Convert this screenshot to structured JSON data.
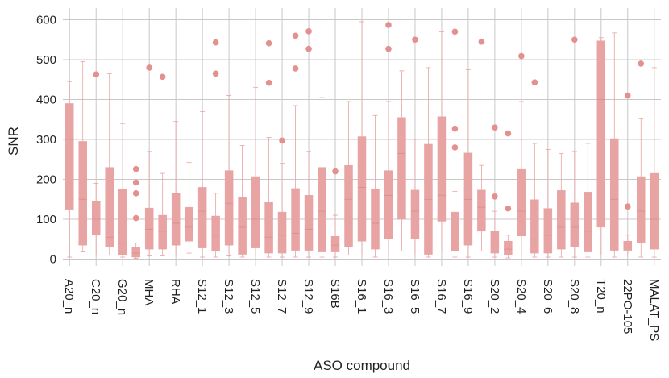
{
  "chart_data": {
    "type": "box",
    "title": "",
    "xlabel": "ASO compound",
    "ylabel": "SNR",
    "ylim": [
      -20,
      640
    ],
    "yticks": [
      0,
      100,
      200,
      300,
      400,
      500,
      600
    ],
    "grid": true,
    "legend": "none",
    "box_color": "#e8a3a3",
    "grid_color": "#c8c8c8",
    "x_tick_labels": [
      "A20_n",
      "C20_n",
      "G20_n",
      "MHA",
      "RHA",
      "S12_1",
      "S12_3",
      "S12_5",
      "S12_7",
      "S12_9",
      "S16B",
      "S16_1",
      "S16_3",
      "S16_5",
      "S16_7",
      "S16_9",
      "S20_2",
      "S20_4",
      "S20_6",
      "S20_8",
      "T20_n",
      "22PO-105",
      "MALAT_PS"
    ],
    "boxes": [
      {
        "q1": 125,
        "median": 300,
        "q3": 390,
        "whisker_low": 5,
        "whisker_high": 445,
        "outliers": []
      },
      {
        "q1": 35,
        "median": 150,
        "q3": 295,
        "whisker_low": 18,
        "whisker_high": 495,
        "outliers": []
      },
      {
        "q1": 60,
        "median": 100,
        "q3": 145,
        "whisker_low": 10,
        "whisker_high": 190,
        "outliers": [
          463
        ]
      },
      {
        "q1": 30,
        "median": 55,
        "q3": 230,
        "whisker_low": 10,
        "whisker_high": 465,
        "outliers": []
      },
      {
        "q1": 10,
        "median": 40,
        "q3": 175,
        "whisker_low": 5,
        "whisker_high": 340,
        "outliers": []
      },
      {
        "q1": 5,
        "median": 15,
        "q3": 30,
        "whisker_low": 2,
        "whisker_high": 40,
        "outliers": [
          103,
          165,
          192,
          226
        ]
      },
      {
        "q1": 25,
        "median": 75,
        "q3": 128,
        "whisker_low": 8,
        "whisker_high": 270,
        "outliers": [
          480
        ]
      },
      {
        "q1": 25,
        "median": 70,
        "q3": 110,
        "whisker_low": 8,
        "whisker_high": 215,
        "outliers": [
          457
        ]
      },
      {
        "q1": 35,
        "median": 90,
        "q3": 165,
        "whisker_low": 10,
        "whisker_high": 345,
        "outliers": []
      },
      {
        "q1": 45,
        "median": 80,
        "q3": 130,
        "whisker_low": 15,
        "whisker_high": 242,
        "outliers": []
      },
      {
        "q1": 28,
        "median": 120,
        "q3": 180,
        "whisker_low": 5,
        "whisker_high": 370,
        "outliers": []
      },
      {
        "q1": 20,
        "median": 60,
        "q3": 108,
        "whisker_low": 5,
        "whisker_high": 165,
        "outliers": [
          465,
          543
        ]
      },
      {
        "q1": 35,
        "median": 140,
        "q3": 222,
        "whisker_low": 8,
        "whisker_high": 410,
        "outliers": []
      },
      {
        "q1": 12,
        "median": 80,
        "q3": 155,
        "whisker_low": 5,
        "whisker_high": 285,
        "outliers": []
      },
      {
        "q1": 28,
        "median": 100,
        "q3": 207,
        "whisker_low": 10,
        "whisker_high": 430,
        "outliers": []
      },
      {
        "q1": 15,
        "median": 55,
        "q3": 142,
        "whisker_low": 5,
        "whisker_high": 305,
        "outliers": [
          442,
          541
        ]
      },
      {
        "q1": 15,
        "median": 60,
        "q3": 118,
        "whisker_low": 5,
        "whisker_high": 240,
        "outliers": [
          297
        ]
      },
      {
        "q1": 22,
        "median": 65,
        "q3": 177,
        "whisker_low": 5,
        "whisker_high": 385,
        "outliers": [
          478,
          560
        ]
      },
      {
        "q1": 22,
        "median": 75,
        "q3": 160,
        "whisker_low": 5,
        "whisker_high": 270,
        "outliers": [
          527,
          571
        ]
      },
      {
        "q1": 18,
        "median": 120,
        "q3": 230,
        "whisker_low": 5,
        "whisker_high": 405,
        "outliers": []
      },
      {
        "q1": 18,
        "median": 35,
        "q3": 57,
        "whisker_low": 5,
        "whisker_high": 110,
        "outliers": [
          220
        ]
      },
      {
        "q1": 30,
        "median": 150,
        "q3": 235,
        "whisker_low": 10,
        "whisker_high": 395,
        "outliers": []
      },
      {
        "q1": 45,
        "median": 180,
        "q3": 307,
        "whisker_low": 10,
        "whisker_high": 595,
        "outliers": []
      },
      {
        "q1": 25,
        "median": 90,
        "q3": 175,
        "whisker_low": 5,
        "whisker_high": 360,
        "outliers": []
      },
      {
        "q1": 50,
        "median": 160,
        "q3": 222,
        "whisker_low": 10,
        "whisker_high": 395,
        "outliers": [
          527,
          587
        ]
      },
      {
        "q1": 100,
        "median": 265,
        "q3": 355,
        "whisker_low": 20,
        "whisker_high": 472,
        "outliers": []
      },
      {
        "q1": 52,
        "median": 120,
        "q3": 173,
        "whisker_low": 10,
        "whisker_high": 300,
        "outliers": [
          550
        ]
      },
      {
        "q1": 12,
        "median": 150,
        "q3": 288,
        "whisker_low": 5,
        "whisker_high": 480,
        "outliers": []
      },
      {
        "q1": 95,
        "median": 160,
        "q3": 357,
        "whisker_low": 20,
        "whisker_high": 570,
        "outliers": []
      },
      {
        "q1": 20,
        "median": 40,
        "q3": 118,
        "whisker_low": 5,
        "whisker_high": 170,
        "outliers": [
          280,
          327,
          570
        ]
      },
      {
        "q1": 35,
        "median": 150,
        "q3": 266,
        "whisker_low": 5,
        "whisker_high": 475,
        "outliers": []
      },
      {
        "q1": 70,
        "median": 130,
        "q3": 173,
        "whisker_low": 20,
        "whisker_high": 235,
        "outliers": [
          545
        ]
      },
      {
        "q1": 15,
        "median": 40,
        "q3": 70,
        "whisker_low": 5,
        "whisker_high": 120,
        "outliers": [
          157,
          330
        ]
      },
      {
        "q1": 10,
        "median": 25,
        "q3": 45,
        "whisker_low": 3,
        "whisker_high": 60,
        "outliers": [
          127,
          315
        ]
      },
      {
        "q1": 58,
        "median": 120,
        "q3": 225,
        "whisker_low": 10,
        "whisker_high": 395,
        "outliers": [
          509
        ]
      },
      {
        "q1": 15,
        "median": 50,
        "q3": 149,
        "whisker_low": 5,
        "whisker_high": 290,
        "outliers": [
          443
        ]
      },
      {
        "q1": 15,
        "median": 60,
        "q3": 127,
        "whisker_low": 5,
        "whisker_high": 275,
        "outliers": []
      },
      {
        "q1": 25,
        "median": 80,
        "q3": 172,
        "whisker_low": 5,
        "whisker_high": 265,
        "outliers": []
      },
      {
        "q1": 30,
        "median": 80,
        "q3": 141,
        "whisker_low": 5,
        "whisker_high": 270,
        "outliers": [
          550
        ]
      },
      {
        "q1": 18,
        "median": 70,
        "q3": 168,
        "whisker_low": 5,
        "whisker_high": 290,
        "outliers": []
      },
      {
        "q1": 80,
        "median": 400,
        "q3": 547,
        "whisker_low": 10,
        "whisker_high": 555,
        "outliers": []
      },
      {
        "q1": 22,
        "median": 150,
        "q3": 302,
        "whisker_low": 5,
        "whisker_high": 567,
        "outliers": []
      },
      {
        "q1": 22,
        "median": 30,
        "q3": 45,
        "whisker_low": 10,
        "whisker_high": 60,
        "outliers": [
          132,
          410
        ]
      },
      {
        "q1": 42,
        "median": 120,
        "q3": 207,
        "whisker_low": 5,
        "whisker_high": 352,
        "outliers": [
          490
        ]
      },
      {
        "q1": 25,
        "median": 100,
        "q3": 215,
        "whisker_low": 5,
        "whisker_high": 480,
        "outliers": []
      }
    ]
  }
}
